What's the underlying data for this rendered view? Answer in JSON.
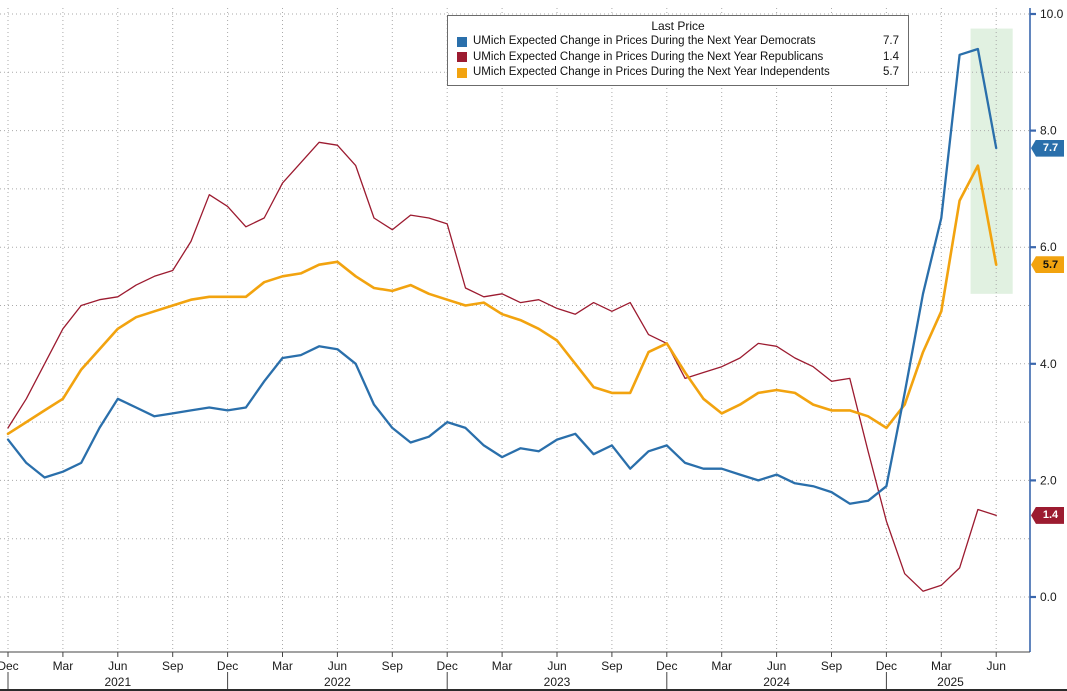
{
  "style": {
    "background": "#ffffff",
    "grid_color": "#aaaaaa",
    "axis_color": "#3a67ad",
    "text_color": "#1a1a1a",
    "frame_color": "#444444",
    "band_color": "rgba(163,213,163,0.32)"
  },
  "chart_data": {
    "type": "line",
    "title": "Last Price",
    "x_unit": "month",
    "x_start": "Dec 2020",
    "x_end": "Jun 2025",
    "grid": "dotted",
    "legend_position": "top-center",
    "x_tick_labels": [
      "Dec",
      "Mar",
      "Jun",
      "Sep",
      "Dec",
      "Mar",
      "Jun",
      "Sep",
      "Dec",
      "Mar",
      "Jun",
      "Sep",
      "Dec",
      "Mar",
      "Jun",
      "Sep",
      "Dec",
      "Mar",
      "Jun"
    ],
    "years": [
      {
        "label": "2021",
        "center": 6
      },
      {
        "label": "2022",
        "center": 18
      },
      {
        "label": "2023",
        "center": 30
      },
      {
        "label": "2024",
        "center": 42
      },
      {
        "label": "2025",
        "center": 51.5
      }
    ],
    "year_separator_idx": [
      0,
      12,
      24,
      36,
      48
    ],
    "yaxis": {
      "ticks": [
        0,
        2,
        4,
        6,
        8,
        10
      ],
      "tick_labels": [
        "0.0",
        "2.0",
        "4.0",
        "6.0",
        "8.0",
        "10.0"
      ],
      "grid_min": 0,
      "grid_max": 10,
      "grid_step": 1,
      "ylim": [
        -0.95,
        10.1
      ],
      "side": "right"
    },
    "band": {
      "i0": 52.6,
      "i1": 54.9,
      "v0": 5.2,
      "v1": 9.75
    },
    "series": [
      {
        "id": "democrats",
        "name": "UMich Expected Change in Prices During the Next Year Democrats",
        "color": "#2a6fab",
        "badge_text": "#ffffff",
        "width": 2.3,
        "last": 7.7,
        "values": [
          2.7,
          2.3,
          2.05,
          2.15,
          2.3,
          2.9,
          3.4,
          3.25,
          3.1,
          3.15,
          3.2,
          3.25,
          3.2,
          3.25,
          3.7,
          4.1,
          4.15,
          4.3,
          4.25,
          4.0,
          3.3,
          2.9,
          2.65,
          2.75,
          3.0,
          2.9,
          2.6,
          2.4,
          2.55,
          2.5,
          2.7,
          2.8,
          2.45,
          2.6,
          2.2,
          2.5,
          2.6,
          2.3,
          2.2,
          2.2,
          2.1,
          2.0,
          2.1,
          1.95,
          1.9,
          1.8,
          1.6,
          1.65,
          1.9,
          3.5,
          5.2,
          6.5,
          9.3,
          9.4,
          7.7
        ]
      },
      {
        "id": "republicans",
        "name": "UMich Expected Change in Prices During the Next Year Republicans",
        "color": "#9c1b30",
        "badge_text": "#ffffff",
        "width": 1.3,
        "last": 1.4,
        "values": [
          2.9,
          3.4,
          4.0,
          4.6,
          5.0,
          5.1,
          5.15,
          5.35,
          5.5,
          5.6,
          6.1,
          6.9,
          6.7,
          6.35,
          6.5,
          7.1,
          7.45,
          7.8,
          7.75,
          7.4,
          6.5,
          6.3,
          6.55,
          6.5,
          6.4,
          5.3,
          5.15,
          5.2,
          5.05,
          5.1,
          4.95,
          4.85,
          5.05,
          4.9,
          5.05,
          4.5,
          4.35,
          3.75,
          3.85,
          3.95,
          4.1,
          4.35,
          4.3,
          4.1,
          3.95,
          3.7,
          3.75,
          2.5,
          1.3,
          0.4,
          0.1,
          0.2,
          0.5,
          1.5,
          1.4
        ]
      },
      {
        "id": "independents",
        "name": "UMich Expected Change in Prices During the Next Year Independents",
        "color": "#f2a30f",
        "badge_text": "#111111",
        "width": 2.6,
        "last": 5.7,
        "values": [
          2.8,
          3.0,
          3.2,
          3.4,
          3.9,
          4.25,
          4.6,
          4.8,
          4.9,
          5.0,
          5.1,
          5.15,
          5.15,
          5.15,
          5.4,
          5.5,
          5.55,
          5.7,
          5.75,
          5.5,
          5.3,
          5.25,
          5.35,
          5.2,
          5.1,
          5.0,
          5.05,
          4.85,
          4.75,
          4.6,
          4.4,
          4.0,
          3.6,
          3.5,
          3.5,
          4.2,
          4.35,
          3.85,
          3.4,
          3.15,
          3.3,
          3.5,
          3.55,
          3.5,
          3.3,
          3.2,
          3.2,
          3.1,
          2.9,
          3.3,
          4.2,
          4.9,
          6.8,
          7.4,
          5.7
        ]
      }
    ]
  }
}
